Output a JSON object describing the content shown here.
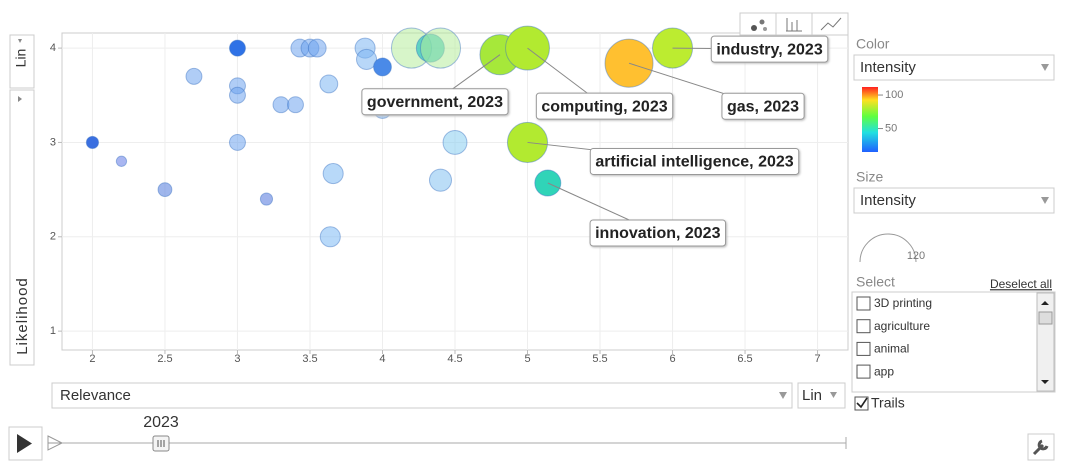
{
  "chart_data": {
    "type": "scatter",
    "x_label": "Relevance",
    "y_label": "Likelihood",
    "time_label": "2023",
    "x": [
      2,
      2.2,
      2.5,
      2.7,
      3,
      3,
      3,
      3,
      3.2,
      3.3,
      3.4,
      3.43,
      3.5,
      3.55,
      3.63,
      3.66,
      3.64,
      3.88,
      3.89,
      4,
      4,
      4.2,
      4.33,
      4.4,
      4.5,
      4.4,
      4.81,
      5,
      5,
      5.14,
      5.7,
      6
    ],
    "y": [
      3,
      2.8,
      2.5,
      3.7,
      4,
      3.6,
      3.5,
      3,
      2.4,
      3.4,
      3.4,
      4,
      4,
      4,
      3.62,
      2.67,
      2,
      4,
      3.88,
      3.8,
      3.35,
      4,
      4,
      4,
      3,
      2.6,
      3.93,
      4,
      3,
      2.57,
      3.84,
      4
    ],
    "sizes": [
      7,
      5,
      9,
      12,
      12,
      12,
      12,
      12,
      7,
      12,
      12,
      15,
      15,
      15,
      15,
      19,
      19,
      19,
      19,
      15,
      15,
      76,
      37,
      76,
      27,
      23,
      76,
      91,
      76,
      32,
      109,
      76
    ],
    "colors": [
      "#3a6fe0",
      "#6f86e899",
      "#5f86e099",
      "#6aa2ee88",
      "#2f72e6",
      "#6aa2ee88",
      "#6aa2ee88",
      "#6aa2ee88",
      "#5f80e099",
      "#6aa2ee88",
      "#6aa2ee88",
      "#6aa2ee88",
      "#6aa2ee88",
      "#6aa2ee88",
      "#7ab4f288",
      "#7ab8f488",
      "#7ab8f488",
      "#7ab4f288",
      "#7ab4f288",
      "#4a8ae8",
      "#7ab4f288",
      "#b4ec9a88",
      "#22c0c0aa",
      "#b4ec9a88",
      "#86ccf088",
      "#80c0f088",
      "#a6e83a",
      "#b2ea30",
      "#b2ea30",
      "#30d4b8",
      "#ffc030",
      "#bcec30"
    ],
    "labels": [
      null,
      null,
      null,
      null,
      null,
      null,
      null,
      null,
      null,
      null,
      null,
      null,
      null,
      null,
      null,
      null,
      null,
      null,
      null,
      null,
      null,
      null,
      null,
      null,
      null,
      null,
      "government, 2023",
      "computing, 2023",
      "artificial intelligence, 2023",
      "innovation, 2023",
      "gas, 2023",
      "industry, 2023"
    ],
    "xlim": [
      1.79,
      7.21
    ],
    "ylim": [
      0.8,
      4.16
    ],
    "xticks": [
      2,
      2.5,
      3,
      3.5,
      4,
      4.5,
      5,
      5.5,
      6,
      6.5,
      7
    ],
    "yticks": [
      1,
      2,
      3,
      4
    ],
    "grid": true,
    "x_scale": "Lin",
    "y_scale": "Lin"
  },
  "controls": {
    "color_label": "Color",
    "color_by": "Intensity",
    "color_ticks": [
      50,
      100
    ],
    "color_range": [
      15,
      112
    ],
    "size_label": "Size",
    "size_by": "Intensity",
    "size_max": 120,
    "select_label": "Select",
    "deselect": "Deselect all",
    "items": [
      "3D printing",
      "agriculture",
      "animal",
      "app"
    ],
    "trails": "Trails"
  }
}
